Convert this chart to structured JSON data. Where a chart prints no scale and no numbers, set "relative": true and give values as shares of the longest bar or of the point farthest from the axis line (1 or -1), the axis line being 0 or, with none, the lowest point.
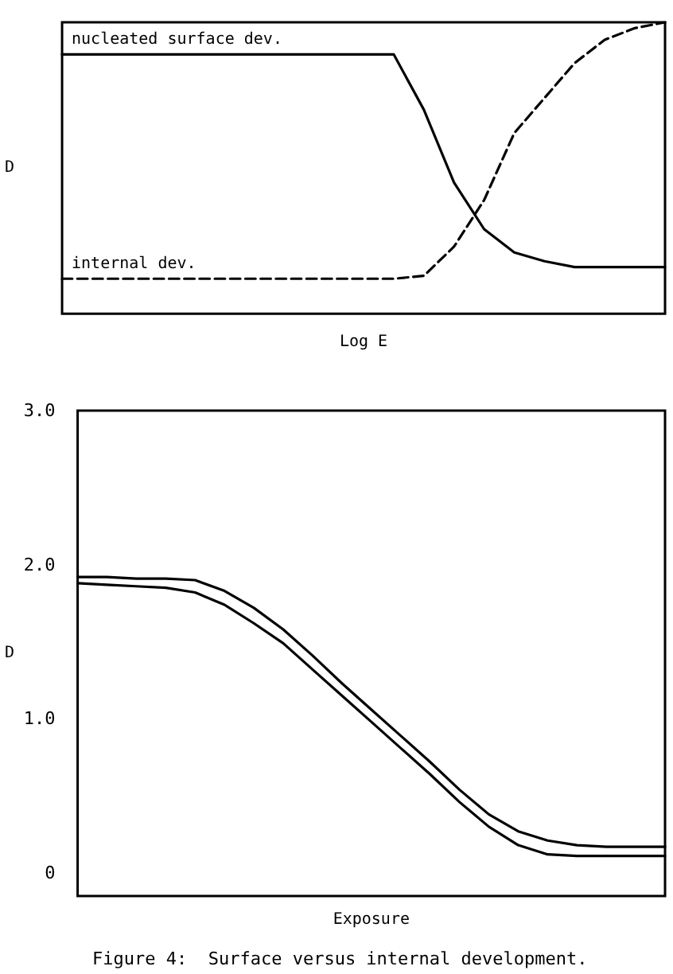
{
  "chart_data": [
    {
      "type": "line",
      "relative": true,
      "ylabel": "D",
      "xlabel": "Log E",
      "grid": false,
      "legend": false,
      "marker": "none",
      "categories": [
        null,
        null,
        null,
        null,
        null,
        null,
        null,
        null,
        null,
        null,
        null,
        null,
        null,
        null,
        null,
        null,
        null,
        null,
        null,
        null,
        null
      ],
      "series": [
        {
          "name": "nucleated surface dev.",
          "color": "#000000",
          "line_style": "solid",
          "values": [
            0.89,
            0.89,
            0.89,
            0.89,
            0.89,
            0.89,
            0.89,
            0.89,
            0.89,
            0.89,
            0.89,
            0.89,
            0.7,
            0.45,
            0.29,
            0.21,
            0.18,
            0.16,
            0.16,
            0.16,
            0.16
          ]
        },
        {
          "name": "internal dev.",
          "color": "#000000",
          "line_style": "dashed",
          "values": [
            0.12,
            0.12,
            0.12,
            0.12,
            0.12,
            0.12,
            0.12,
            0.12,
            0.12,
            0.12,
            0.12,
            0.12,
            0.13,
            0.23,
            0.39,
            0.62,
            0.74,
            0.86,
            0.94,
            0.98,
            1.0
          ]
        }
      ]
    },
    {
      "type": "line",
      "ylabel": "D",
      "xlabel": "Exposure",
      "grid": false,
      "legend": false,
      "marker": "none",
      "tick_labels": "y",
      "ylim": [
        -0.15,
        3.0
      ],
      "yticks": [
        0,
        {
          "value": 1,
          "label": "1.0"
        },
        {
          "value": 2,
          "label": "2.0"
        },
        {
          "value": 3,
          "label": "3.0"
        }
      ],
      "categories": [
        null,
        null,
        null,
        null,
        null,
        null,
        null,
        null,
        null,
        null,
        null,
        null,
        null,
        null,
        null,
        null,
        null,
        null,
        null,
        null,
        null
      ],
      "series": [
        {
          "color": "#000000",
          "line_style": "solid",
          "values": [
            1.92,
            1.92,
            1.91,
            1.91,
            1.9,
            1.83,
            1.72,
            1.58,
            1.41,
            1.23,
            1.06,
            0.89,
            0.72,
            0.54,
            0.38,
            0.27,
            0.21,
            0.18,
            0.17,
            0.17,
            0.17
          ]
        },
        {
          "color": "#000000",
          "line_style": "solid",
          "values": [
            1.88,
            1.87,
            1.86,
            1.85,
            1.82,
            1.74,
            1.62,
            1.49,
            1.32,
            1.15,
            0.98,
            0.81,
            0.64,
            0.46,
            0.3,
            0.18,
            0.12,
            0.11,
            0.11,
            0.11,
            0.11
          ]
        }
      ],
      "annotations": [
        "Figure 4:  Surface versus internal development."
      ]
    }
  ]
}
